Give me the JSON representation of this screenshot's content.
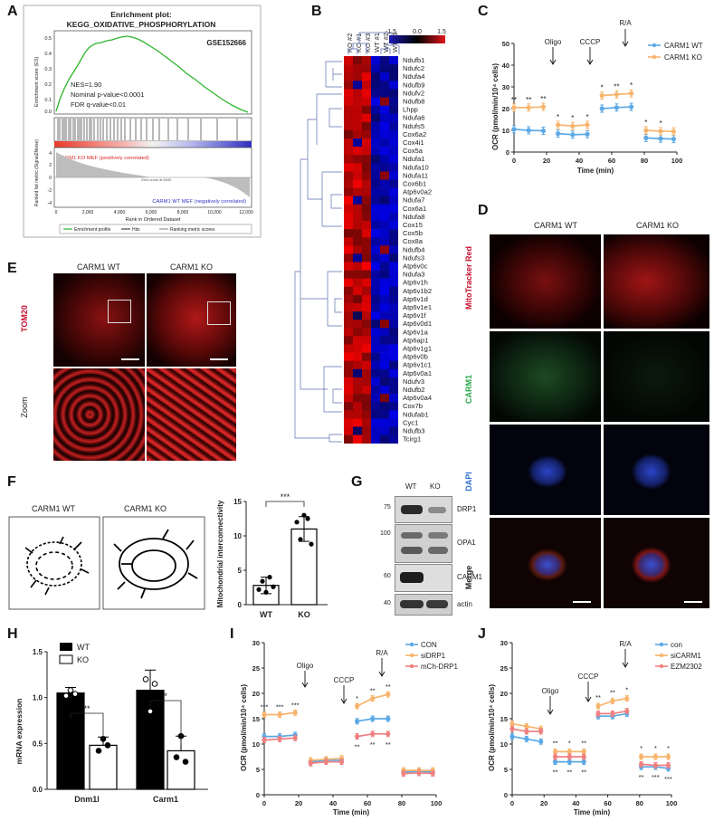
{
  "panels": {
    "A": "A",
    "B": "B",
    "C": "C",
    "D": "D",
    "E": "E",
    "F": "F",
    "G": "G",
    "H": "H",
    "I": "I",
    "J": "J"
  },
  "panelA": {
    "title_line1": "Enrichment plot:",
    "title_line2": "KEGG_OXIDATIVE_PHOSPHORYLATION",
    "dataset": "GSE152666",
    "stats": [
      "NES=1.90",
      "Nominal p-value<0.0001",
      "FDR q-value<0.01"
    ],
    "ylabel_top": "Enrichment score (ES)",
    "ylabel_bottom": "Ranked list metric (Signal2Noise)",
    "pos_label": "CARM1 KO MEF (positively correlated)",
    "neg_label": "CARM1 WT MEF (negatively correlated)",
    "zero_cross": "Zero cross at 6340",
    "xlabel": "Rank in Ordered Dataset",
    "xticks": [
      "0",
      "2,000",
      "4,000",
      "6,000",
      "8,000",
      "10,000",
      "12,000"
    ],
    "yticks_es": [
      "0.5",
      "0.4",
      "0.3",
      "0.2",
      "0.1",
      "0.0"
    ],
    "yticks_rank": [
      "4",
      "2",
      "0",
      "-2",
      "-4"
    ],
    "legend": [
      "Enrichment profile",
      "Hits",
      "Ranking metric scores"
    ]
  },
  "panelB": {
    "columns": [
      "KO #2",
      "KO #1",
      "KO #3",
      "WT #1",
      "WT #2",
      "WT #3"
    ],
    "scale": [
      "-1.5",
      "0.0",
      "1.5"
    ],
    "genes": [
      "Ndufb1",
      "Ndufc2",
      "Ndufa4",
      "Ndufb9",
      "Ndufv2",
      "Ndufb8",
      "Lhpp",
      "Ndufa6",
      "Ndufs5",
      "Cox6a2",
      "Cox4i1",
      "Cox5a",
      "Ndufa1",
      "Ndufa10",
      "Ndufa11",
      "Cox6b1",
      "Atp6v0a2",
      "Ndufa7",
      "Cox6a1",
      "Ndufa8",
      "Cox15",
      "Cox5b",
      "Cox8a",
      "Ndufb4",
      "Ndufs3",
      "Atp6v0c",
      "Ndufa3",
      "Atp6v1h",
      "Atp6v1b2",
      "Atp6v1d",
      "Atp6v1e1",
      "Atp6v1f",
      "Atp6v0d1",
      "Atp6v1a",
      "Atp6ap1",
      "Atp6v1g1",
      "Atp6v0b",
      "Atp6v1c1",
      "Atp6v0a1",
      "Ndufv3",
      "Ndufb2",
      "Atp6v0a4",
      "Cox7b",
      "Ndufab1",
      "Cyc1",
      "Ndufb3",
      "Tcirg1"
    ]
  },
  "panelC": {
    "ylabel": "OCR (pmol/min/10⁴ cells)",
    "xlabel": "Time (min)",
    "legend": [
      "CARM1 WT",
      "CARM1 KO"
    ],
    "arrows": [
      "Oligo",
      "CCCP",
      "R/A"
    ],
    "xticks": [
      "0",
      "20",
      "40",
      "60",
      "80",
      "100"
    ],
    "yticks": [
      "0",
      "10",
      "20",
      "30",
      "40",
      "50"
    ],
    "sig": [
      "**",
      "**",
      "**",
      "*",
      "*",
      "*",
      "*",
      "**",
      "*",
      "*",
      "*"
    ]
  },
  "panelD": {
    "cols": [
      "CARM1 WT",
      "CARM1 KO"
    ],
    "rows": [
      "MitoTracker Red",
      "CARM1",
      "DAPI",
      "Merge"
    ]
  },
  "panelE": {
    "cols": [
      "CARM1 WT",
      "CARM1 KO"
    ],
    "stain": "TOM20",
    "zoom": "Zoom"
  },
  "panelF": {
    "cols": [
      "CARM1 WT",
      "CARM1 KO"
    ],
    "ylabel": "Mitochondrial interconnectivity",
    "cats": [
      "WT",
      "KO"
    ],
    "yticks": [
      "0",
      "5",
      "10",
      "15"
    ],
    "sig": "***"
  },
  "panelG": {
    "cols": [
      "WT",
      "KO"
    ],
    "markers": [
      "75",
      "100",
      "60",
      "40"
    ],
    "proteins": [
      "DRP1",
      "OPA1",
      "CARM1",
      "actin"
    ]
  },
  "panelH": {
    "ylabel": "mRNA expression",
    "legend": [
      "WT",
      "KO"
    ],
    "cats": [
      "Dnm1l",
      "Carm1"
    ],
    "yticks": [
      "0.0",
      "0.5",
      "1.0",
      "1.5"
    ],
    "sig": [
      "**",
      "*"
    ]
  },
  "panelI": {
    "ylabel": "OCR (pmol/min/10⁴ cells)",
    "xlabel": "Time (min)",
    "legend": [
      "CON",
      "siDRP1",
      "mCh-DRP1"
    ],
    "arrows": [
      "Oligo",
      "CCCP",
      "R/A"
    ],
    "xticks": [
      "0",
      "20",
      "40",
      "60",
      "80",
      "100"
    ],
    "yticks": [
      "0",
      "5",
      "10",
      "15",
      "20",
      "25",
      "30"
    ],
    "sig_top": [
      "***",
      "***",
      "***",
      "*",
      "**",
      "**"
    ],
    "sig_bot": [
      "**",
      "**",
      "**"
    ]
  },
  "panelJ": {
    "ylabel": "OCR (pmol/min/10⁴ cells)",
    "xlabel": "Time (min)",
    "legend": [
      "con",
      "siCARM1",
      "EZM2302"
    ],
    "arrows": [
      "Oligo",
      "CCCP",
      "R/A"
    ],
    "xticks": [
      "0",
      "20",
      "40",
      "60",
      "80",
      "100"
    ],
    "yticks": [
      "0",
      "5",
      "10",
      "15",
      "20",
      "25",
      "30"
    ],
    "sig_top": [
      "**",
      "*",
      "**",
      "**",
      "**",
      "*",
      "*",
      "*",
      "*"
    ],
    "sig_bot": [
      "**",
      "**",
      "**",
      "**",
      "***",
      "***"
    ]
  },
  "chart_data": [
    {
      "type": "line",
      "panel": "C",
      "ylabel": "OCR (pmol/min/10⁴ cells)",
      "xlabel": "Time (min)",
      "xlim": [
        0,
        100
      ],
      "ylim": [
        0,
        50
      ],
      "x": [
        0,
        9,
        18,
        27,
        36,
        45,
        54,
        63,
        72,
        81,
        90,
        98
      ],
      "series": [
        {
          "name": "CARM1 WT",
          "color": "#5aa9e6",
          "values": [
            10.5,
            10,
            9.8,
            8.5,
            8,
            8.2,
            20,
            20.5,
            20.8,
            6.5,
            6.2,
            6
          ]
        },
        {
          "name": "CARM1 KO",
          "color": "#f7b46b",
          "values": [
            20.5,
            20.5,
            20.8,
            12.5,
            12,
            12.5,
            26,
            26.5,
            27,
            10,
            9.6,
            9.5
          ]
        }
      ]
    },
    {
      "type": "bar",
      "panel": "F",
      "ylabel": "Mitochondrial interconnectivity",
      "categories": [
        "WT",
        "KO"
      ],
      "values": [
        2.8,
        11
      ],
      "errors": [
        1.2,
        1.8
      ],
      "ylim": [
        0,
        15
      ],
      "points": [
        [
          2.2,
          3.4,
          1.8,
          4,
          2.6
        ],
        [
          12,
          9.5,
          13,
          12.5,
          8.8
        ]
      ]
    },
    {
      "type": "bar",
      "panel": "H",
      "ylabel": "mRNA expression",
      "categories": [
        "Dnm1l",
        "Carm1"
      ],
      "series": [
        {
          "name": "WT",
          "values": [
            1.05,
            1.08
          ],
          "errors": [
            0.06,
            0.22
          ]
        },
        {
          "name": "KO",
          "values": [
            0.48,
            0.42
          ],
          "errors": [
            0.09,
            0.16
          ]
        }
      ],
      "ylim": [
        0,
        1.5
      ]
    },
    {
      "type": "line",
      "panel": "I",
      "ylabel": "OCR (pmol/min/10⁴ cells)",
      "xlabel": "Time (min)",
      "xlim": [
        0,
        100
      ],
      "ylim": [
        0,
        30
      ],
      "x": [
        0,
        9,
        18,
        27,
        36,
        45,
        54,
        63,
        72,
        81,
        90,
        98
      ],
      "series": [
        {
          "name": "CON",
          "color": "#5aa9e6",
          "values": [
            11.5,
            11.5,
            11.8,
            6.5,
            6.8,
            6.8,
            14.5,
            15,
            15,
            4.5,
            4.6,
            4.5
          ]
        },
        {
          "name": "siDRP1",
          "color": "#f7b46b",
          "values": [
            15.8,
            15.8,
            16.2,
            6.8,
            7,
            7.2,
            17.5,
            19,
            19.8,
            4.8,
            4.8,
            4.8
          ]
        },
        {
          "name": "mCh-DRP1",
          "color": "#f08080",
          "values": [
            10.8,
            11,
            11.2,
            6.2,
            6.5,
            6.5,
            11.5,
            12,
            12,
            4.2,
            4.3,
            4.2
          ]
        }
      ]
    },
    {
      "type": "line",
      "panel": "J",
      "ylabel": "OCR (pmol/min/10⁴ cells)",
      "xlabel": "Time (min)",
      "xlim": [
        0,
        100
      ],
      "ylim": [
        0,
        30
      ],
      "x": [
        0,
        9,
        18,
        27,
        36,
        45,
        54,
        63,
        72,
        81,
        90,
        98
      ],
      "series": [
        {
          "name": "con",
          "color": "#5aa9e6",
          "values": [
            11.5,
            11,
            10.5,
            6.5,
            6.5,
            6.5,
            15.5,
            15.5,
            16,
            5.5,
            5.5,
            5.2
          ]
        },
        {
          "name": "siCARM1",
          "color": "#f7b46b",
          "values": [
            14,
            13.5,
            13,
            8.5,
            8.5,
            8.5,
            17.5,
            18.5,
            19,
            7.5,
            7.5,
            7.5
          ]
        },
        {
          "name": "EZM2302",
          "color": "#f08080",
          "values": [
            13,
            12.5,
            12.5,
            7.5,
            7.5,
            7.5,
            16,
            16,
            16.5,
            6,
            5.8,
            5.8
          ]
        }
      ]
    }
  ]
}
